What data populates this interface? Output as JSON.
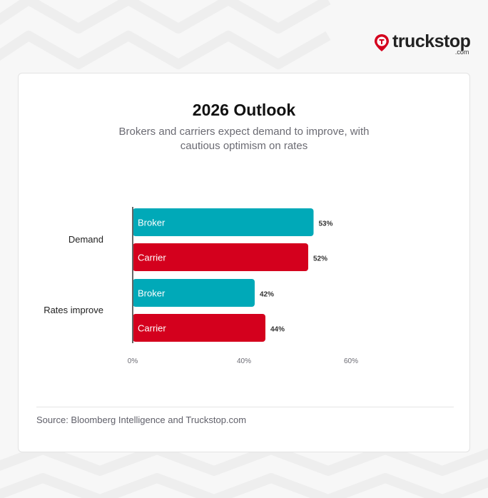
{
  "logo": {
    "word": "truckstop",
    "suffix": ".com"
  },
  "title": "2026 Outlook",
  "subtitle": "Brokers and carriers expect demand to improve, with cautious optimism on rates",
  "source": "Source: Bloomberg Intelligence and Truckstop.com",
  "colors": {
    "broker": "#00a9b8",
    "carrier": "#d4001d",
    "axis": "#666666"
  },
  "chart_data": {
    "type": "bar",
    "orientation": "horizontal",
    "categories": [
      "Demand",
      "Rates improve"
    ],
    "series": [
      {
        "name": "Broker",
        "values": [
          53,
          42
        ],
        "labels": [
          "53%",
          "42%"
        ]
      },
      {
        "name": "Carrier",
        "values": [
          52,
          44
        ],
        "labels": [
          "52%",
          "44%"
        ]
      }
    ],
    "xticks": [
      0,
      40,
      60
    ],
    "xtick_labels": [
      "0%",
      "40%",
      "60%"
    ],
    "xlim": [
      0,
      60
    ],
    "grid": false,
    "legend": "inline bar labels"
  }
}
